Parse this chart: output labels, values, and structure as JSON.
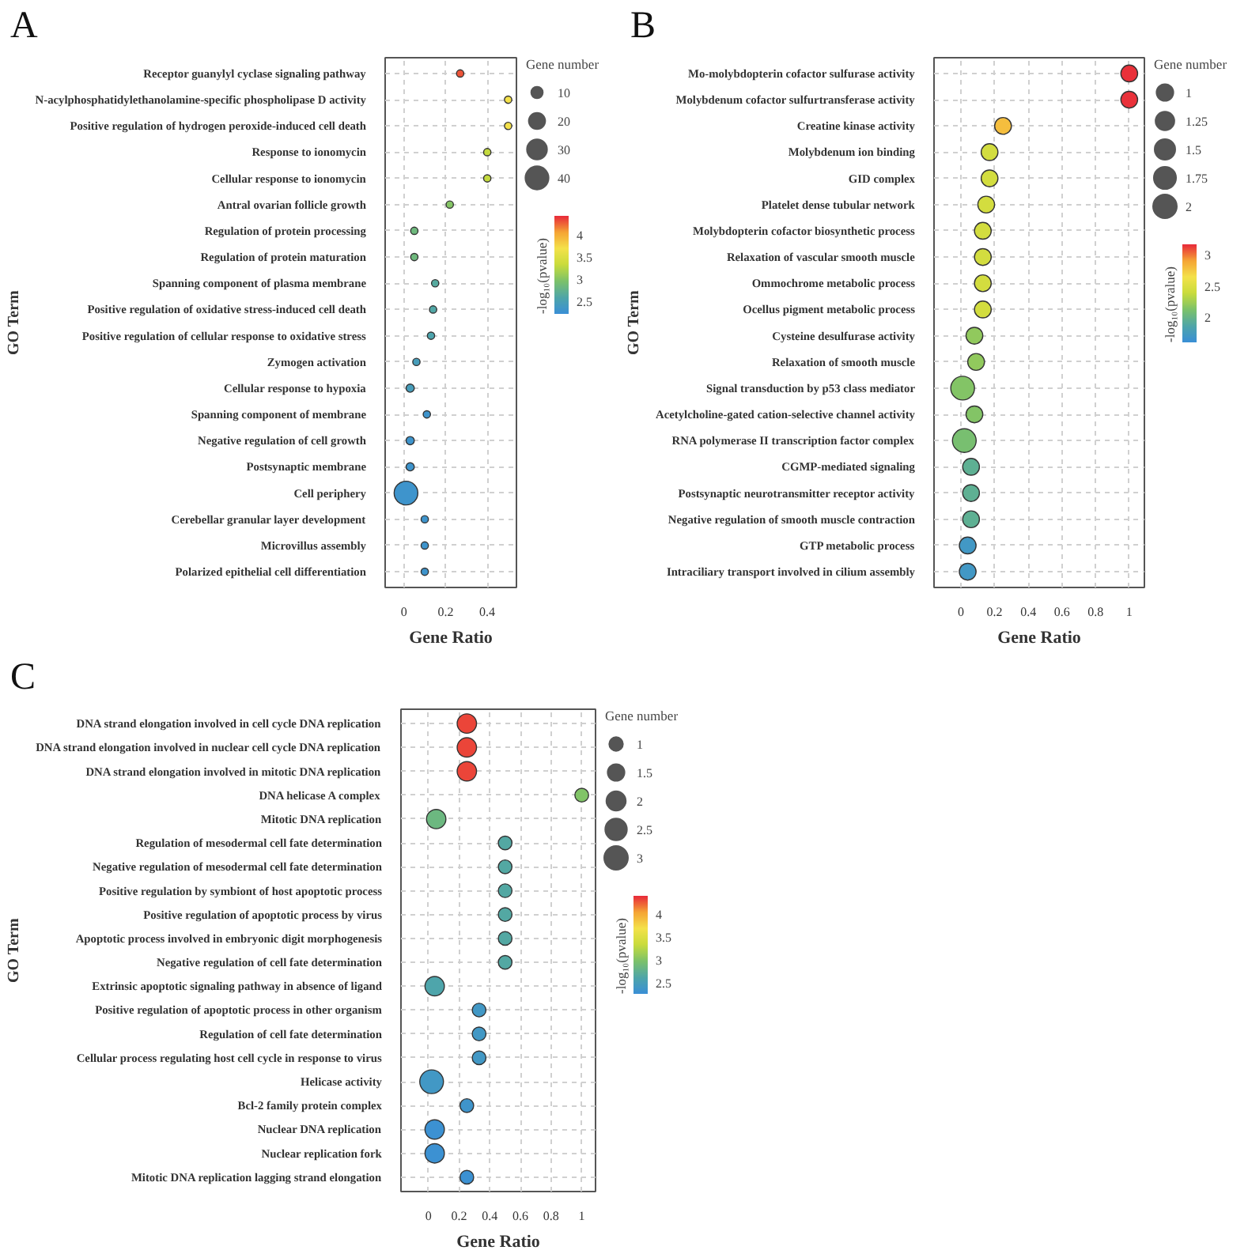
{
  "chart_data": [
    {
      "type": "bubble",
      "title": "A",
      "orientation": "horizontal",
      "xlabel": "Gene Ratio",
      "ylabel": "GO Term",
      "legend_title": "Gene number",
      "clabel": "-log₁₀(pvalue)",
      "grid": true,
      "categories": [
        "Receptor guanylyl cyclase signaling pathway",
        "N-acylphosphatidylethanolamine-specific phospholipase D activity",
        "Positive regulation of hydrogen peroxide-induced cell death",
        "Response to ionomycin",
        "Cellular response to ionomycin",
        "Antral ovarian follicle growth",
        "Regulation of protein processing",
        "Regulation of protein maturation",
        "Spanning component of plasma membrane",
        "Positive regulation of oxidative stress-induced cell death",
        "Positive regulation of cellular response to oxidative stress",
        "Zymogen activation",
        "Cellular response to hypoxia",
        "Spanning component of membrane",
        "Negative regulation of cell growth",
        "Postsynaptic membrane",
        "Cell periphery",
        "Cerebellar granular layer development",
        "Microvillus assembly",
        "Polarized epithelial cell differentiation"
      ],
      "values": [
        0.27,
        0.5,
        0.5,
        0.4,
        0.4,
        0.22,
        0.05,
        0.05,
        0.15,
        0.14,
        0.13,
        0.06,
        0.03,
        0.11,
        0.03,
        0.03,
        0.01,
        0.1,
        0.1,
        0.1
      ],
      "sizes": [
        4,
        4,
        4,
        4,
        4,
        4,
        4,
        4,
        4,
        4,
        4,
        4,
        5,
        4,
        5,
        5,
        42,
        4,
        4,
        4
      ],
      "cvalues": [
        4.3,
        3.7,
        3.7,
        3.3,
        3.3,
        3.0,
        2.85,
        2.85,
        2.65,
        2.6,
        2.55,
        2.45,
        2.45,
        2.3,
        2.3,
        2.3,
        2.3,
        2.3,
        2.3,
        2.3
      ],
      "size_legend": [
        10,
        20,
        30,
        40
      ],
      "clim": [
        2.22,
        4.43
      ],
      "cticks": [
        2.5,
        3,
        3.5,
        4
      ],
      "xlim": [
        -0.09,
        0.54
      ],
      "xticks": [
        0,
        0.2,
        0.4
      ]
    },
    {
      "type": "bubble",
      "title": "B",
      "orientation": "horizontal",
      "xlabel": "Gene Ratio",
      "ylabel": "GO Term",
      "legend_title": "Gene number",
      "clabel": "-log₁₀(pvalue)",
      "grid": true,
      "categories": [
        "Mo-molybdopterin cofactor sulfurase activity",
        "Molybdenum cofactor sulfurtransferase activity",
        "Creatine kinase activity",
        "Molybdenum ion binding",
        "GID complex",
        "Platelet dense tubular network",
        "Molybdopterin cofactor biosynthetic process",
        "Relaxation of vascular smooth muscle",
        "Ommochrome metabolic process",
        "Ocellus pigment metabolic process",
        "Cysteine desulfurase activity",
        "Relaxation of smooth muscle",
        "Signal transduction by p53 class mediator",
        "Acetylcholine-gated cation-selective channel activity",
        "RNA polymerase II transcription factor complex",
        "CGMP-mediated signaling",
        "Postsynaptic neurotransmitter receptor activity",
        "Negative regulation of smooth muscle contraction",
        "GTP metabolic process",
        "Intraciliary transport involved in cilium assembly"
      ],
      "values": [
        1.0,
        1.0,
        0.25,
        0.17,
        0.17,
        0.15,
        0.13,
        0.13,
        0.13,
        0.13,
        0.08,
        0.09,
        0.01,
        0.08,
        0.02,
        0.06,
        0.06,
        0.06,
        0.04,
        0.04
      ],
      "sizes": [
        1,
        1,
        1,
        1,
        1,
        1,
        1,
        1,
        1,
        1,
        1,
        1,
        2,
        1,
        2,
        1,
        1,
        1,
        1,
        1
      ],
      "cvalues": [
        3.15,
        3.15,
        2.8,
        2.45,
        2.45,
        2.45,
        2.45,
        2.45,
        2.45,
        2.45,
        2.2,
        2.2,
        2.15,
        2.15,
        2.1,
        1.95,
        1.95,
        1.95,
        1.7,
        1.7
      ],
      "size_legend": [
        1,
        1.25,
        1.5,
        1.75,
        2
      ],
      "clim": [
        1.6,
        3.17
      ],
      "cticks": [
        2,
        2.5,
        3
      ],
      "xlim": [
        -0.16,
        1.09
      ],
      "xticks": [
        0,
        0.2,
        0.4,
        0.6,
        0.8,
        1
      ]
    },
    {
      "type": "bubble",
      "title": "C",
      "orientation": "horizontal",
      "xlabel": "Gene Ratio",
      "ylabel": "GO Term",
      "legend_title": "Gene number",
      "clabel": "-log₁₀(pvalue)",
      "grid": true,
      "categories": [
        "DNA strand elongation involved in cell cycle DNA replication",
        "DNA strand elongation involved in nuclear cell cycle DNA replication",
        "DNA strand elongation involved in mitotic DNA replication",
        "DNA helicase A complex",
        "Mitotic DNA replication",
        "Regulation of mesodermal cell fate determination",
        "Negative regulation of mesodermal cell fate determination",
        "Positive regulation by symbiont of host apoptotic process",
        "Positive regulation of apoptotic process by virus",
        "Apoptotic process involved in embryonic digit morphogenesis",
        "Negative regulation of cell fate determination",
        "Extrinsic apoptotic signaling pathway in absence of ligand",
        "Positive regulation of apoptotic process in other organism",
        "Regulation of cell fate determination",
        "Cellular process regulating host cell cycle in response to virus",
        "Helicase activity",
        "Bcl-2 family protein complex",
        "Nuclear DNA replication",
        "Nuclear replication fork",
        "Mitotic DNA replication lagging strand elongation"
      ],
      "values": [
        0.25,
        0.25,
        0.25,
        1.0,
        0.05,
        0.5,
        0.5,
        0.5,
        0.5,
        0.5,
        0.5,
        0.04,
        0.33,
        0.33,
        0.33,
        0.02,
        0.25,
        0.04,
        0.04,
        0.25
      ],
      "sizes": [
        2,
        2,
        2,
        1,
        2,
        1,
        1,
        1,
        1,
        1,
        1,
        2,
        1,
        1,
        1,
        3,
        1,
        2,
        2,
        1
      ],
      "cvalues": [
        4.3,
        4.3,
        4.3,
        3.0,
        2.85,
        2.65,
        2.65,
        2.65,
        2.65,
        2.65,
        2.65,
        2.6,
        2.4,
        2.4,
        2.4,
        2.4,
        2.35,
        2.3,
        2.3,
        2.3
      ],
      "size_legend": [
        1,
        1.5,
        2,
        2.5,
        3
      ],
      "clim": [
        2.26,
        4.39
      ],
      "cticks": [
        2.5,
        3,
        3.5,
        4
      ],
      "xlim": [
        -0.18,
        1.09
      ],
      "xticks": [
        0,
        0.2,
        0.4,
        0.6,
        0.8,
        1
      ]
    }
  ]
}
